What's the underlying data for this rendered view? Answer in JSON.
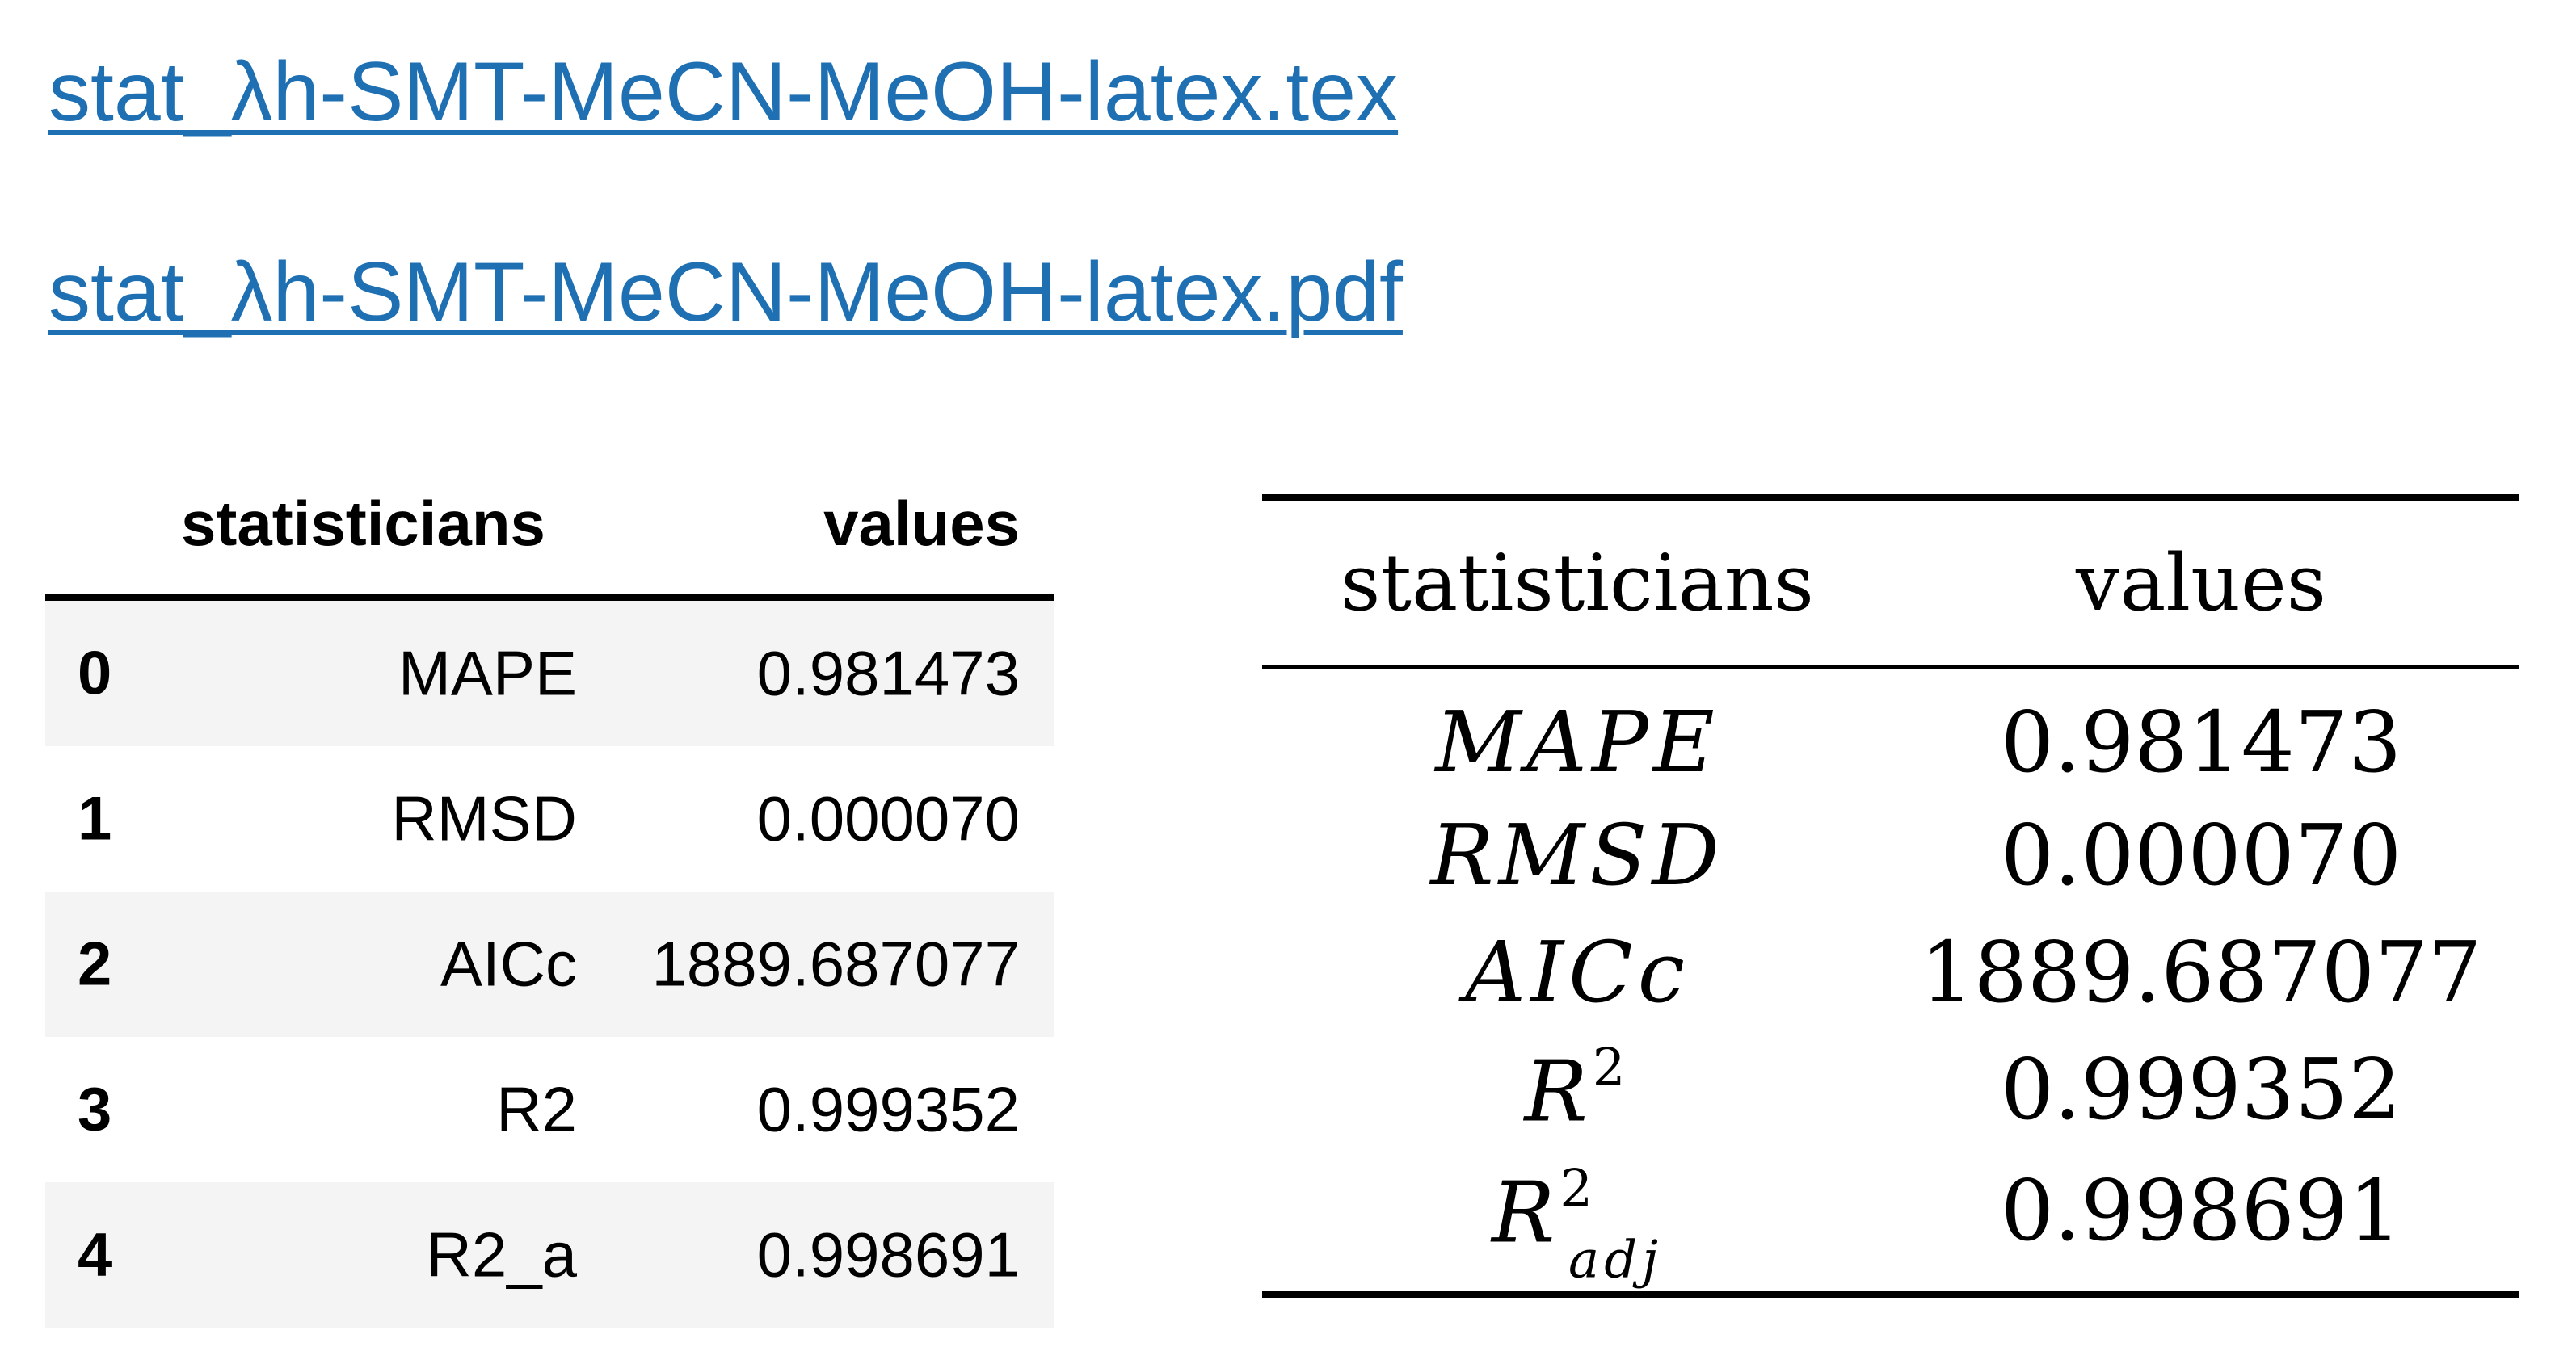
{
  "links": {
    "tex": "stat_λh-SMT-MeCN-MeOH-latex.tex",
    "pdf": "stat_λh-SMT-MeCN-MeOH-latex.pdf"
  },
  "dataframe": {
    "columns": [
      "statisticians",
      "values"
    ],
    "rows": [
      {
        "index": "0",
        "stat": "MAPE",
        "value": "0.981473"
      },
      {
        "index": "1",
        "stat": "RMSD",
        "value": "0.000070"
      },
      {
        "index": "2",
        "stat": "AICc",
        "value": "1889.687077"
      },
      {
        "index": "3",
        "stat": "R2",
        "value": "0.999352"
      },
      {
        "index": "4",
        "stat": "R2_a",
        "value": "0.998691"
      }
    ]
  },
  "latex_table": {
    "columns": [
      "statisticians",
      "values"
    ],
    "rows": [
      {
        "stat": "MAPE",
        "value": "0.981473"
      },
      {
        "stat": "RMSD",
        "value": "0.000070"
      },
      {
        "stat": "AICc",
        "value": "1889.687077"
      },
      {
        "stat": "R",
        "sup": "2",
        "value": "0.999352"
      },
      {
        "stat": "R",
        "sup": "2",
        "sub": "adj",
        "value": "0.998691"
      }
    ]
  },
  "colors": {
    "link": "#1f6fb3",
    "row_shade": "#f4f4f4"
  }
}
